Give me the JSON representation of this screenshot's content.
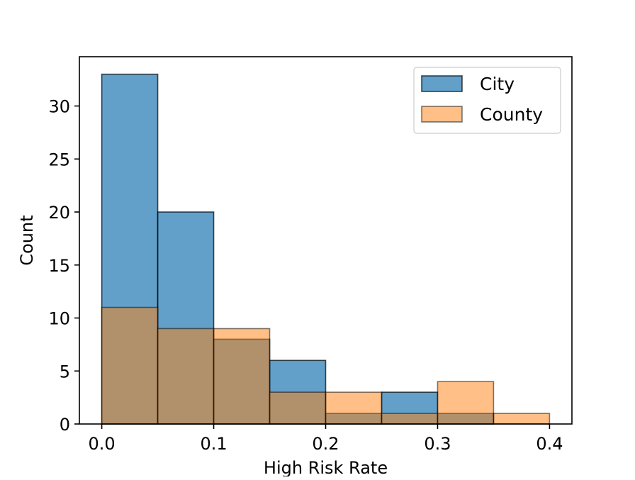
{
  "chart_data": {
    "type": "histogram",
    "title": "",
    "xlabel": "High Risk Rate",
    "ylabel": "Count",
    "xlim": [
      -0.02,
      0.42
    ],
    "ylim": [
      0,
      34.65
    ],
    "xticks": [
      0.0,
      0.1,
      0.2,
      0.3,
      0.4
    ],
    "xtick_labels": [
      "0.0",
      "0.1",
      "0.2",
      "0.3",
      "0.4"
    ],
    "yticks": [
      0,
      5,
      10,
      15,
      20,
      25,
      30
    ],
    "ytick_labels": [
      "0",
      "5",
      "10",
      "15",
      "20",
      "25",
      "30"
    ],
    "bin_edges": [
      0.0,
      0.05,
      0.1,
      0.15,
      0.2,
      0.25,
      0.3,
      0.35,
      0.4
    ],
    "series": [
      {
        "name": "City",
        "color": "#1f77b4",
        "alpha": 0.7,
        "values": [
          33,
          20,
          8,
          6,
          1,
          3,
          1,
          0
        ]
      },
      {
        "name": "County",
        "color": "#ff7f0e",
        "alpha": 0.5,
        "values": [
          11,
          9,
          9,
          3,
          3,
          1,
          4,
          1
        ]
      }
    ],
    "legend": {
      "position": "top-right",
      "entries": [
        "City",
        "County"
      ]
    },
    "grid": false
  }
}
